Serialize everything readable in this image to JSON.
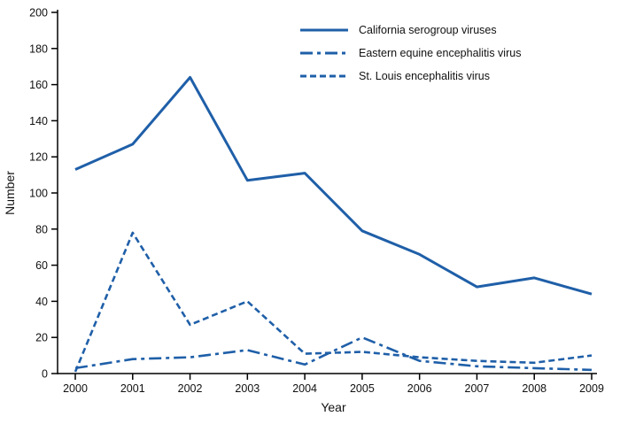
{
  "chart_data": {
    "type": "line",
    "x": [
      2000,
      2001,
      2002,
      2003,
      2004,
      2005,
      2006,
      2007,
      2008,
      2009
    ],
    "series": [
      {
        "name": "California serogroup viruses",
        "dash": "solid",
        "values": [
          113,
          127,
          164,
          107,
          111,
          79,
          66,
          48,
          53,
          44
        ]
      },
      {
        "name": "Eastern equine encephalitis virus",
        "dash": "dash-dot",
        "values": [
          3,
          8,
          9,
          13,
          5,
          20,
          7,
          4,
          3,
          2
        ]
      },
      {
        "name": "St. Louis encephalitis virus",
        "dash": "dashed",
        "values": [
          1,
          78,
          27,
          40,
          11,
          12,
          9,
          7,
          6,
          10
        ]
      }
    ],
    "xlabel": "Year",
    "ylabel": "Number",
    "ylim": [
      0,
      200
    ],
    "ytick_step": 20,
    "line_color": "#1F5FA8",
    "axis_color": "#000000",
    "grid": false,
    "legend_position": "top-center-right"
  }
}
